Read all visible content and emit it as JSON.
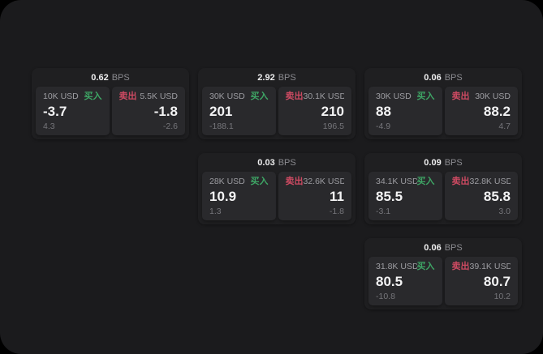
{
  "labels": {
    "bps_suffix": "BPS",
    "buy": "买入",
    "sell": "卖出"
  },
  "colors": {
    "background": "#000000",
    "surface": "#1b1b1d",
    "card": "#1f1f21",
    "panel": "#29292c",
    "buy_green": "#3ea565",
    "sell_red": "#ce4a62",
    "text_primary": "#f3f3f4",
    "text_secondary": "#9d9da2",
    "text_muted": "#76767b"
  },
  "cards": [
    {
      "bps": "0.62",
      "buy": {
        "size": "10K USD",
        "price": "-3.7",
        "delta": "4.3"
      },
      "sell": {
        "size": "5.5K USD",
        "price": "-1.8",
        "delta": "-2.6"
      }
    },
    {
      "bps": "2.92",
      "buy": {
        "size": "30K USD",
        "price": "201",
        "delta": "-188.1"
      },
      "sell": {
        "size": "30.1K USD",
        "price": "210",
        "delta": "196.5"
      }
    },
    {
      "bps": "0.06",
      "buy": {
        "size": "30K USD",
        "price": "88",
        "delta": "-4.9"
      },
      "sell": {
        "size": "30K USD",
        "price": "88.2",
        "delta": "4.7"
      }
    },
    {
      "bps": "0.03",
      "buy": {
        "size": "28K USD",
        "price": "10.9",
        "delta": "1.3"
      },
      "sell": {
        "size": "32.6K USD",
        "price": "11",
        "delta": "-1.8"
      }
    },
    {
      "bps": "0.09",
      "buy": {
        "size": "34.1K USD",
        "price": "85.5",
        "delta": "-3.1"
      },
      "sell": {
        "size": "32.8K USD",
        "price": "85.8",
        "delta": "3.0"
      }
    },
    {
      "bps": "0.06",
      "buy": {
        "size": "31.8K USD",
        "price": "80.5",
        "delta": "-10.8"
      },
      "sell": {
        "size": "39.1K USD",
        "price": "80.7",
        "delta": "10.2"
      }
    }
  ]
}
